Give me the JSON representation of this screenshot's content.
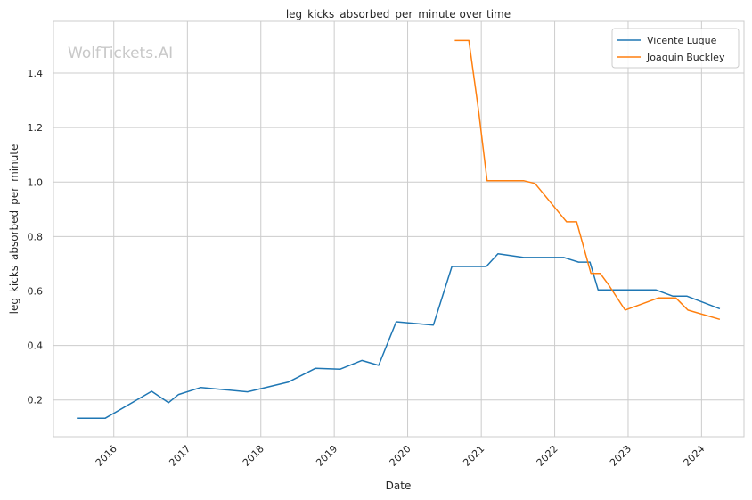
{
  "chart_data": {
    "type": "line",
    "title": "leg_kicks_absorbed_per_minute over time",
    "xlabel": "Date",
    "ylabel": "leg_kicks_absorbed_per_minute",
    "watermark": "WolfTickets.AI",
    "x_ticks": [
      "2016",
      "2017",
      "2018",
      "2019",
      "2020",
      "2021",
      "2022",
      "2023",
      "2024"
    ],
    "y_ticks": [
      0.2,
      0.4,
      0.6,
      0.8,
      1.0,
      1.2,
      1.4
    ],
    "xlim": [
      "2015-03-07",
      "2024-07-30"
    ],
    "ylim": [
      0.065,
      1.59
    ],
    "grid": true,
    "legend_position": "top-right",
    "colors": {
      "Vicente Luque": "#1f77b4",
      "Joaquin Buckley": "#ff7f0e"
    },
    "series": [
      {
        "name": "Vicente Luque",
        "points": [
          [
            "2015-07-01",
            0.133
          ],
          [
            "2015-11-20",
            0.133
          ],
          [
            "2016-07-07",
            0.232
          ],
          [
            "2016-09-29",
            0.19
          ],
          [
            "2016-11-18",
            0.22
          ],
          [
            "2017-03-09",
            0.246
          ],
          [
            "2017-10-27",
            0.23
          ],
          [
            "2018-05-19",
            0.266
          ],
          [
            "2018-09-29",
            0.316
          ],
          [
            "2019-01-31",
            0.313
          ],
          [
            "2019-05-18",
            0.345
          ],
          [
            "2019-08-10",
            0.327
          ],
          [
            "2019-11-05",
            0.487
          ],
          [
            "2020-05-08",
            0.475
          ],
          [
            "2020-08-08",
            0.69
          ],
          [
            "2021-01-26",
            0.69
          ],
          [
            "2021-03-25",
            0.737
          ],
          [
            "2021-07-31",
            0.723
          ],
          [
            "2022-02-15",
            0.723
          ],
          [
            "2022-04-30",
            0.706
          ],
          [
            "2022-06-25",
            0.706
          ],
          [
            "2022-08-05",
            0.604
          ],
          [
            "2023-05-20",
            0.604
          ],
          [
            "2023-08-12",
            0.581
          ],
          [
            "2023-10-21",
            0.581
          ],
          [
            "2024-04-01",
            0.535
          ]
        ]
      },
      {
        "name": "Joaquin Buckley",
        "points": [
          [
            "2020-08-22",
            1.52
          ],
          [
            "2020-10-31",
            1.52
          ],
          [
            "2020-12-19",
            1.26
          ],
          [
            "2021-01-30",
            1.005
          ],
          [
            "2021-08-01",
            1.005
          ],
          [
            "2021-09-25",
            0.995
          ],
          [
            "2022-03-01",
            0.854
          ],
          [
            "2022-04-20",
            0.854
          ],
          [
            "2022-06-30",
            0.665
          ],
          [
            "2022-08-15",
            0.665
          ],
          [
            "2022-09-24",
            0.625
          ],
          [
            "2022-12-17",
            0.53
          ],
          [
            "2023-06-01",
            0.575
          ],
          [
            "2023-08-26",
            0.575
          ],
          [
            "2023-10-25",
            0.53
          ],
          [
            "2024-04-01",
            0.496
          ]
        ]
      }
    ]
  }
}
